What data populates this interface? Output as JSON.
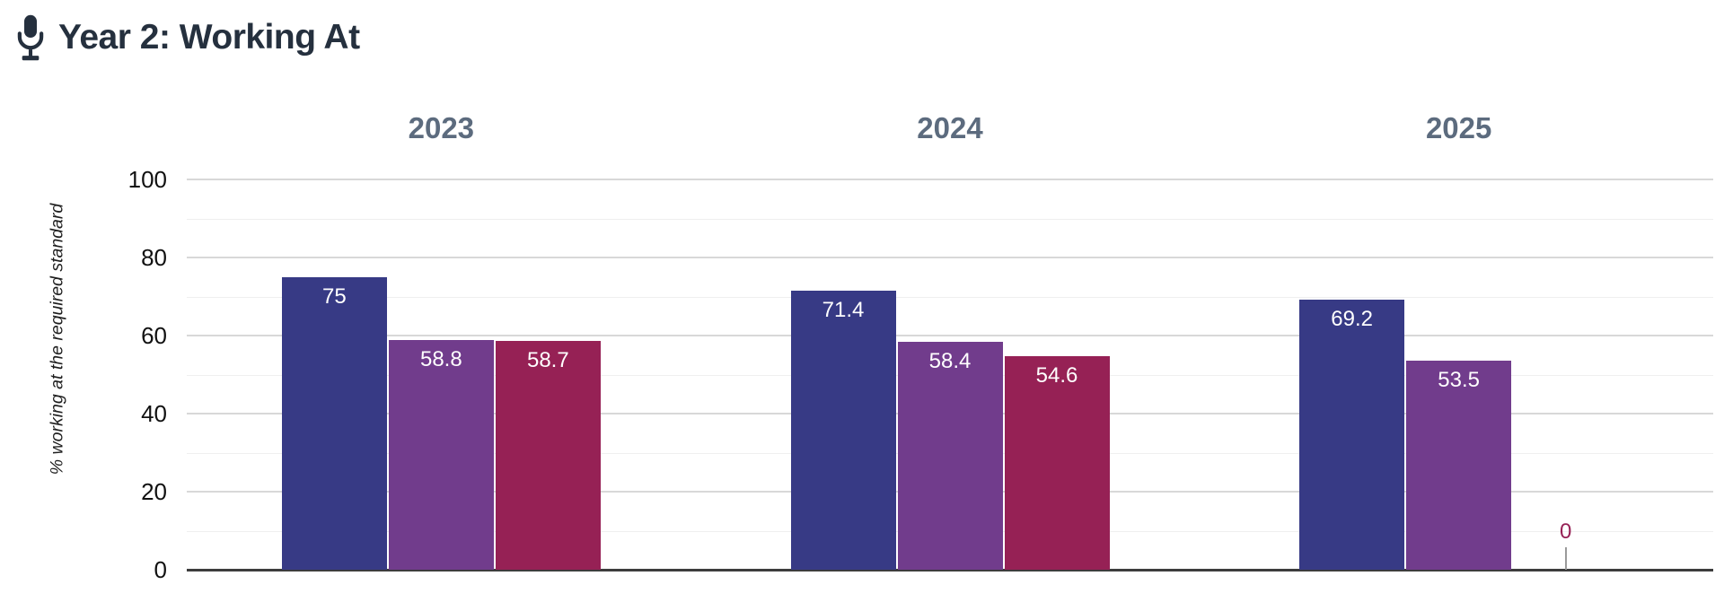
{
  "header": {
    "title": "Year 2: Working At",
    "icon": "microphone-icon"
  },
  "colors": {
    "title_text": "#25303e",
    "facet_title_text": "#5c6b7e",
    "tick_text": "#111111",
    "grid_major": "#d8d8d8",
    "grid_minor": "#efefef",
    "axis_line": "#3d3d3d",
    "bar_label_inside": "#ffffff",
    "zero_connector": "#9a9a9a",
    "background": "#ffffff"
  },
  "chart_data": {
    "type": "bar",
    "title": "Year 2: Working At",
    "facets": [
      "2023",
      "2024",
      "2025"
    ],
    "series": [
      {
        "color": "#373a85",
        "values": [
          75,
          71.4,
          69.2
        ],
        "labels": [
          "75",
          "71.4",
          "69.2"
        ]
      },
      {
        "color": "#713c8c",
        "values": [
          58.8,
          58.4,
          53.5
        ],
        "labels": [
          "58.8",
          "58.4",
          "53.5"
        ]
      },
      {
        "color": "#962155",
        "values": [
          58.7,
          54.6,
          0
        ],
        "labels": [
          "58.7",
          "54.6",
          "0"
        ]
      }
    ],
    "ylabel": "% working at the required standard",
    "xlabel": "",
    "yticks": [
      0,
      20,
      40,
      60,
      80,
      100
    ],
    "ylim": [
      0,
      100
    ],
    "grid": "horizontal major every 20, minor every 10",
    "legend": "none",
    "bar_value_labels": "inside top, white; zero values shown above axis in series color"
  }
}
